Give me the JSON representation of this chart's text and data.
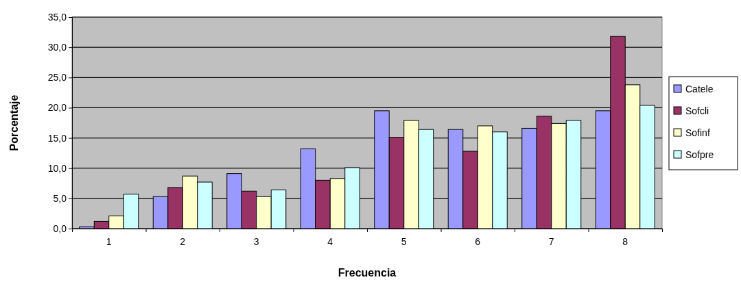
{
  "chart_data": {
    "type": "bar",
    "xlabel": "Frecuencia",
    "ylabel": "Porcentaje",
    "categories": [
      "1",
      "2",
      "3",
      "4",
      "5",
      "6",
      "7",
      "8"
    ],
    "series": [
      {
        "name": "Catele",
        "color": "#9999ff",
        "values": [
          0.3,
          5.3,
          9.1,
          13.2,
          19.5,
          16.4,
          16.6,
          19.5
        ]
      },
      {
        "name": "Sofcli",
        "color": "#993366",
        "values": [
          1.2,
          6.8,
          6.2,
          8.0,
          15.1,
          12.8,
          18.6,
          31.8
        ]
      },
      {
        "name": "Sofinf",
        "color": "#ffffcc",
        "values": [
          2.1,
          8.7,
          5.3,
          8.3,
          17.9,
          17.0,
          17.4,
          23.8
        ]
      },
      {
        "name": "Sofpre",
        "color": "#ccffff",
        "values": [
          5.7,
          7.7,
          6.4,
          10.1,
          16.4,
          16.0,
          17.9,
          20.4
        ]
      }
    ],
    "ylim": [
      0,
      35
    ],
    "yticks": [
      {
        "value": 0,
        "label": "0,0"
      },
      {
        "value": 5,
        "label": "5,0"
      },
      {
        "value": 10,
        "label": "10,0"
      },
      {
        "value": 15,
        "label": "15,0"
      },
      {
        "value": 20,
        "label": "20,0"
      },
      {
        "value": 25,
        "label": "25,0"
      },
      {
        "value": 30,
        "label": "30,0"
      },
      {
        "value": 35,
        "label": "35,0"
      }
    ],
    "grid": "y",
    "legend": "right"
  }
}
